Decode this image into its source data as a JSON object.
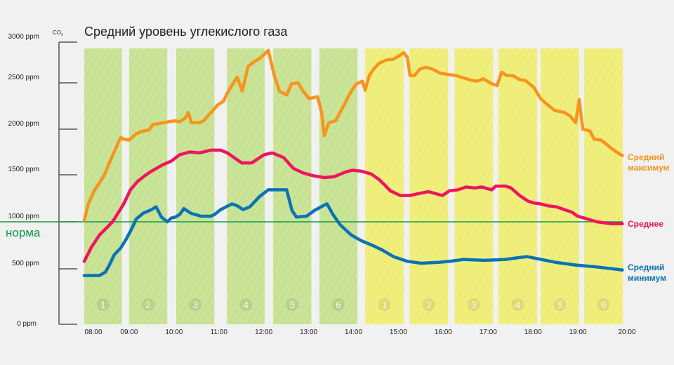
{
  "chart_data": {
    "type": "line",
    "title": "Средний уровень углекислого газа",
    "ylabel": "CO2",
    "ylabel_main": "CO",
    "ylabel_sub": "2",
    "xlabel": "",
    "ylim": [
      0,
      3000
    ],
    "xlim": [
      8,
      20
    ],
    "y_ticks": [
      {
        "value": 0,
        "label": "0 ppm"
      },
      {
        "value": 500,
        "label": "500 ppm"
      },
      {
        "value": 1000,
        "label": "1000 ppm"
      },
      {
        "value": 1500,
        "label": "1500 ppm"
      },
      {
        "value": 2000,
        "label": "2000 ppm"
      },
      {
        "value": 2500,
        "label": "2500 ppm"
      },
      {
        "value": 3000,
        "label": "3000 ppm"
      }
    ],
    "x_ticks": [
      {
        "value": 8,
        "label": "08:00"
      },
      {
        "value": 9,
        "label": "09:00"
      },
      {
        "value": 10,
        "label": "10:00"
      },
      {
        "value": 11,
        "label": "11:00"
      },
      {
        "value": 12,
        "label": "12:00"
      },
      {
        "value": 13,
        "label": "13:00"
      },
      {
        "value": 14,
        "label": "14:00"
      },
      {
        "value": 15,
        "label": "15:00"
      },
      {
        "value": 16,
        "label": "16:00"
      },
      {
        "value": 17,
        "label": "17:00"
      },
      {
        "value": 18,
        "label": "18:00"
      },
      {
        "value": 19,
        "label": "19:00"
      },
      {
        "value": 20,
        "label": "20:00"
      }
    ],
    "norm": {
      "value": 1000,
      "label": "норма",
      "color": "#0e9a48"
    },
    "bands": [
      {
        "start": 8.0,
        "end": 8.84,
        "label": "1",
        "color": "#c9e496"
      },
      {
        "start": 9.0,
        "end": 9.85,
        "label": "2",
        "color": "#c9e496"
      },
      {
        "start": 10.05,
        "end": 10.9,
        "label": "3",
        "color": "#c9e496"
      },
      {
        "start": 11.18,
        "end": 12.02,
        "label": "4",
        "color": "#c9e496"
      },
      {
        "start": 12.21,
        "end": 13.06,
        "label": "5",
        "color": "#c9e496"
      },
      {
        "start": 13.24,
        "end": 14.09,
        "label": "6",
        "color": "#c9e496"
      },
      {
        "start": 14.26,
        "end": 15.12,
        "label": "1",
        "color": "#f1ef7c"
      },
      {
        "start": 15.25,
        "end": 16.11,
        "label": "2",
        "color": "#f1ef7c"
      },
      {
        "start": 16.25,
        "end": 17.11,
        "label": "3",
        "color": "#f1ef7c"
      },
      {
        "start": 17.23,
        "end": 18.09,
        "label": "4",
        "color": "#f1ef7c"
      },
      {
        "start": 18.17,
        "end": 19.03,
        "label": "5",
        "color": "#f1ef7c"
      },
      {
        "start": 19.14,
        "end": 20.0,
        "label": "6",
        "color": "#f1ef7c"
      }
    ],
    "series": [
      {
        "name": "Средний максимум",
        "name_line1": "Средний",
        "name_line2": "максимум",
        "color": "#f7941d",
        "points": [
          [
            8.0,
            1015
          ],
          [
            8.09,
            1190
          ],
          [
            8.22,
            1330
          ],
          [
            8.44,
            1490
          ],
          [
            8.63,
            1710
          ],
          [
            8.81,
            1910
          ],
          [
            8.88,
            1890
          ],
          [
            9.0,
            1880
          ],
          [
            9.16,
            1950
          ],
          [
            9.31,
            1980
          ],
          [
            9.44,
            1990
          ],
          [
            9.53,
            2050
          ],
          [
            9.66,
            2060
          ],
          [
            9.88,
            2080
          ],
          [
            10.0,
            2090
          ],
          [
            10.13,
            2080
          ],
          [
            10.25,
            2120
          ],
          [
            10.32,
            2180
          ],
          [
            10.39,
            2070
          ],
          [
            10.57,
            2070
          ],
          [
            10.66,
            2090
          ],
          [
            10.75,
            2140
          ],
          [
            10.88,
            2210
          ],
          [
            10.97,
            2260
          ],
          [
            11.1,
            2300
          ],
          [
            11.21,
            2410
          ],
          [
            11.41,
            2570
          ],
          [
            11.52,
            2410
          ],
          [
            11.65,
            2700
          ],
          [
            11.79,
            2760
          ],
          [
            11.94,
            2810
          ],
          [
            12.1,
            2900
          ],
          [
            12.23,
            2600
          ],
          [
            12.35,
            2410
          ],
          [
            12.51,
            2370
          ],
          [
            12.62,
            2490
          ],
          [
            12.76,
            2500
          ],
          [
            12.88,
            2410
          ],
          [
            13.01,
            2330
          ],
          [
            13.2,
            2350
          ],
          [
            13.29,
            2180
          ],
          [
            13.35,
            1930
          ],
          [
            13.45,
            2070
          ],
          [
            13.6,
            2090
          ],
          [
            13.79,
            2260
          ],
          [
            13.95,
            2410
          ],
          [
            14.07,
            2490
          ],
          [
            14.2,
            2520
          ],
          [
            14.26,
            2420
          ],
          [
            14.35,
            2590
          ],
          [
            14.45,
            2670
          ],
          [
            14.57,
            2740
          ],
          [
            14.73,
            2780
          ],
          [
            14.89,
            2790
          ],
          [
            15.01,
            2830
          ],
          [
            15.12,
            2870
          ],
          [
            15.2,
            2810
          ],
          [
            15.26,
            2590
          ],
          [
            15.36,
            2590
          ],
          [
            15.48,
            2670
          ],
          [
            15.61,
            2690
          ],
          [
            15.76,
            2670
          ],
          [
            15.92,
            2620
          ],
          [
            16.14,
            2600
          ],
          [
            16.29,
            2590
          ],
          [
            16.45,
            2560
          ],
          [
            16.64,
            2530
          ],
          [
            16.76,
            2520
          ],
          [
            16.89,
            2550
          ],
          [
            17.08,
            2490
          ],
          [
            17.2,
            2470
          ],
          [
            17.3,
            2630
          ],
          [
            17.42,
            2590
          ],
          [
            17.55,
            2590
          ],
          [
            17.7,
            2540
          ],
          [
            17.83,
            2530
          ],
          [
            18.02,
            2450
          ],
          [
            18.17,
            2330
          ],
          [
            18.33,
            2260
          ],
          [
            18.49,
            2200
          ],
          [
            18.7,
            2180
          ],
          [
            18.83,
            2140
          ],
          [
            18.95,
            2070
          ],
          [
            19.03,
            2320
          ],
          [
            19.11,
            2000
          ],
          [
            19.27,
            1980
          ],
          [
            19.36,
            1890
          ],
          [
            19.52,
            1880
          ],
          [
            19.67,
            1820
          ],
          [
            19.83,
            1760
          ],
          [
            19.99,
            1710
          ]
        ]
      },
      {
        "name": "Среднее",
        "name_line1": "Среднее",
        "name_line2": "",
        "color": "#ee1560",
        "points": [
          [
            8.0,
            580
          ],
          [
            8.16,
            730
          ],
          [
            8.34,
            860
          ],
          [
            8.63,
            1000
          ],
          [
            8.88,
            1190
          ],
          [
            9.03,
            1340
          ],
          [
            9.19,
            1430
          ],
          [
            9.35,
            1490
          ],
          [
            9.5,
            1540
          ],
          [
            9.75,
            1610
          ],
          [
            9.94,
            1650
          ],
          [
            10.13,
            1720
          ],
          [
            10.35,
            1750
          ],
          [
            10.57,
            1740
          ],
          [
            10.82,
            1770
          ],
          [
            11.04,
            1770
          ],
          [
            11.19,
            1740
          ],
          [
            11.51,
            1630
          ],
          [
            11.73,
            1630
          ],
          [
            12.01,
            1720
          ],
          [
            12.19,
            1740
          ],
          [
            12.44,
            1690
          ],
          [
            12.66,
            1570
          ],
          [
            12.88,
            1520
          ],
          [
            13.1,
            1490
          ],
          [
            13.35,
            1470
          ],
          [
            13.57,
            1480
          ],
          [
            13.82,
            1530
          ],
          [
            13.98,
            1550
          ],
          [
            14.17,
            1540
          ],
          [
            14.39,
            1510
          ],
          [
            14.57,
            1450
          ],
          [
            14.7,
            1390
          ],
          [
            14.82,
            1330
          ],
          [
            15.04,
            1280
          ],
          [
            15.26,
            1280
          ],
          [
            15.45,
            1300
          ],
          [
            15.67,
            1320
          ],
          [
            15.98,
            1280
          ],
          [
            16.14,
            1330
          ],
          [
            16.33,
            1340
          ],
          [
            16.51,
            1370
          ],
          [
            16.7,
            1360
          ],
          [
            16.86,
            1370
          ],
          [
            17.08,
            1340
          ],
          [
            17.17,
            1380
          ],
          [
            17.39,
            1380
          ],
          [
            17.51,
            1360
          ],
          [
            17.7,
            1280
          ],
          [
            17.89,
            1220
          ],
          [
            18.02,
            1200
          ],
          [
            18.17,
            1190
          ],
          [
            18.33,
            1170
          ],
          [
            18.52,
            1160
          ],
          [
            18.7,
            1130
          ],
          [
            18.88,
            1100
          ],
          [
            18.99,
            1060
          ],
          [
            19.14,
            1040
          ],
          [
            19.42,
            1000
          ],
          [
            19.74,
            980
          ],
          [
            19.99,
            980
          ]
        ]
      },
      {
        "name": "Средний минимум",
        "name_line1": "Средний",
        "name_line2": "минимум",
        "color": "#0b72b5",
        "points": [
          [
            8.0,
            440
          ],
          [
            8.16,
            440
          ],
          [
            8.34,
            440
          ],
          [
            8.47,
            470
          ],
          [
            8.56,
            540
          ],
          [
            8.67,
            650
          ],
          [
            8.81,
            720
          ],
          [
            8.94,
            820
          ],
          [
            9.06,
            930
          ],
          [
            9.16,
            1030
          ],
          [
            9.31,
            1090
          ],
          [
            9.5,
            1130
          ],
          [
            9.6,
            1160
          ],
          [
            9.72,
            1050
          ],
          [
            9.85,
            1000
          ],
          [
            9.94,
            1040
          ],
          [
            10.03,
            1050
          ],
          [
            10.13,
            1080
          ],
          [
            10.22,
            1140
          ],
          [
            10.38,
            1090
          ],
          [
            10.6,
            1060
          ],
          [
            10.82,
            1060
          ],
          [
            10.91,
            1080
          ],
          [
            11.04,
            1130
          ],
          [
            11.29,
            1190
          ],
          [
            11.41,
            1170
          ],
          [
            11.54,
            1130
          ],
          [
            11.69,
            1160
          ],
          [
            11.91,
            1270
          ],
          [
            12.1,
            1340
          ],
          [
            12.35,
            1340
          ],
          [
            12.51,
            1340
          ],
          [
            12.63,
            1120
          ],
          [
            12.73,
            1050
          ],
          [
            12.95,
            1060
          ],
          [
            13.13,
            1120
          ],
          [
            13.32,
            1170
          ],
          [
            13.41,
            1190
          ],
          [
            13.54,
            1080
          ],
          [
            13.7,
            970
          ],
          [
            13.95,
            860
          ],
          [
            14.17,
            800
          ],
          [
            14.42,
            750
          ],
          [
            14.64,
            700
          ],
          [
            14.89,
            630
          ],
          [
            15.2,
            580
          ],
          [
            15.51,
            560
          ],
          [
            15.92,
            570
          ],
          [
            16.14,
            580
          ],
          [
            16.45,
            600
          ],
          [
            16.92,
            590
          ],
          [
            17.39,
            600
          ],
          [
            17.7,
            620
          ],
          [
            17.86,
            630
          ],
          [
            18.08,
            610
          ],
          [
            18.49,
            570
          ],
          [
            18.95,
            540
          ],
          [
            19.42,
            520
          ],
          [
            19.99,
            490
          ]
        ]
      }
    ]
  }
}
